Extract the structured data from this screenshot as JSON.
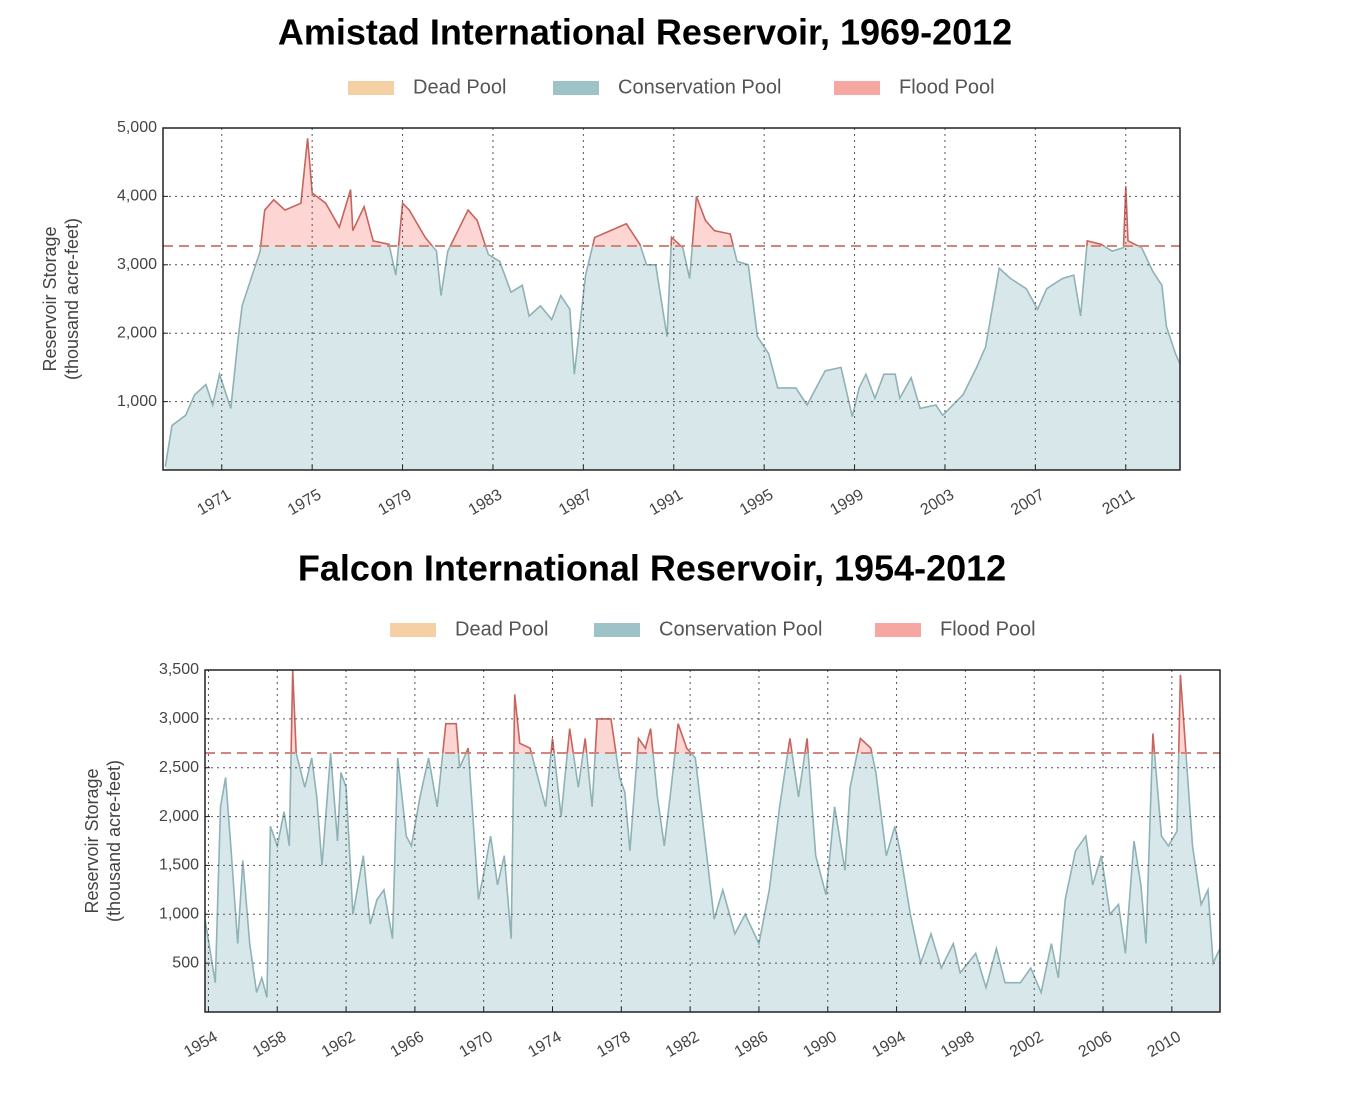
{
  "chart_data": [
    {
      "type": "area",
      "title": "Amistad International Reservoir, 1969-2012",
      "ylabel": [
        "Reservoir Storage",
        "(thousand acre-feet)"
      ],
      "legend": [
        {
          "name": "Dead Pool",
          "color": "#f5d0a4"
        },
        {
          "name": "Conservation Pool",
          "color": "#9ec3c7"
        },
        {
          "name": "Flood Pool",
          "color": "#f7a7a1"
        }
      ],
      "flood_pool_level": 3275,
      "xlim": [
        1968.4,
        2013.4
      ],
      "xticks": [
        1971,
        1975,
        1979,
        1983,
        1987,
        1991,
        1995,
        1999,
        2003,
        2007,
        2011
      ],
      "ylim": [
        0,
        5000
      ],
      "yticks": [
        {
          "value": 1000,
          "label": "1,000"
        },
        {
          "value": 2000,
          "label": "2,000"
        },
        {
          "value": 3000,
          "label": "3,000"
        },
        {
          "value": 4000,
          "label": "4,000"
        },
        {
          "value": 5000,
          "label": "5,000"
        }
      ],
      "grid": true,
      "series": [
        {
          "name": "Reservoir Storage",
          "color": "#8fb2b6",
          "x": [
            1968.5,
            1968.8,
            1969.4,
            1969.8,
            1970.3,
            1970.6,
            1970.9,
            1971.4,
            1971.7,
            1971.9,
            1972.3,
            1972.7,
            1972.9,
            1973.3,
            1973.8,
            1974.5,
            1974.8,
            1975.0,
            1975.6,
            1976.2,
            1976.7,
            1976.8,
            1977.3,
            1977.7,
            1978.4,
            1978.7,
            1979.0,
            1979.3,
            1980.0,
            1980.5,
            1980.7,
            1981.0,
            1981.6,
            1981.9,
            1982.3,
            1982.8,
            1983.3,
            1983.8,
            1984.3,
            1984.6,
            1985.1,
            1985.6,
            1986.0,
            1986.4,
            1986.6,
            1987.1,
            1987.5,
            1988.2,
            1988.9,
            1989.5,
            1989.8,
            1990.2,
            1990.7,
            1990.9,
            1991.4,
            1991.7,
            1992.0,
            1992.4,
            1992.8,
            1993.5,
            1993.8,
            1994.3,
            1994.7,
            1995.2,
            1995.6,
            1996.4,
            1996.9,
            1997.3,
            1997.7,
            1998.4,
            1998.9,
            1999.2,
            1999.5,
            1999.9,
            2000.3,
            2000.8,
            2001.0,
            2001.5,
            2001.9,
            2002.6,
            2002.9,
            2003.5,
            2003.8,
            2004.4,
            2004.8,
            2005.4,
            2005.9,
            2006.6,
            2007.1,
            2007.5,
            2008.2,
            2008.7,
            2009.0,
            2009.3,
            2009.9,
            2010.4,
            2010.9,
            2011.0,
            2011.1,
            2011.7,
            2012.2,
            2012.6,
            2012.8,
            2013.2,
            2013.4
          ],
          "values": [
            50,
            650,
            800,
            1100,
            1250,
            950,
            1400,
            900,
            1850,
            2400,
            2800,
            3200,
            3800,
            3950,
            3800,
            3900,
            4850,
            4050,
            3900,
            3550,
            4100,
            3500,
            3850,
            3350,
            3300,
            2850,
            3900,
            3800,
            3400,
            3200,
            2550,
            3200,
            3600,
            3800,
            3650,
            3150,
            3050,
            2600,
            2700,
            2250,
            2400,
            2200,
            2550,
            2350,
            1400,
            2850,
            3400,
            3500,
            3600,
            3300,
            3000,
            3000,
            1950,
            3400,
            3250,
            2800,
            4000,
            3650,
            3500,
            3450,
            3050,
            3000,
            1950,
            1700,
            1200,
            1200,
            950,
            1200,
            1450,
            1500,
            780,
            1200,
            1400,
            1050,
            1400,
            1400,
            1050,
            1350,
            900,
            950,
            800,
            1000,
            1100,
            1500,
            1800,
            2950,
            2800,
            2650,
            2350,
            2650,
            2800,
            2850,
            2250,
            3350,
            3300,
            3200,
            3250,
            4150,
            3350,
            3250,
            2900,
            2700,
            2100,
            1700,
            1550
          ]
        }
      ]
    },
    {
      "type": "area",
      "title": "Falcon International Reservoir, 1954-2012",
      "ylabel": [
        "Reservoir Storage",
        "(thousand acre-feet)"
      ],
      "legend": [
        {
          "name": "Dead Pool",
          "color": "#f5d0a4"
        },
        {
          "name": "Conservation Pool",
          "color": "#9ec3c7"
        },
        {
          "name": "Flood Pool",
          "color": "#f7a7a1"
        }
      ],
      "flood_pool_level": 2650,
      "xlim": [
        1953.8,
        2012.8
      ],
      "xticks": [
        1954,
        1958,
        1962,
        1966,
        1970,
        1974,
        1978,
        1982,
        1986,
        1990,
        1994,
        1998,
        2002,
        2006,
        2010
      ],
      "ylim": [
        0,
        3500
      ],
      "yticks": [
        500,
        {
          "value": 1000,
          "label": "1,000"
        },
        {
          "value": 1500,
          "label": "1,500"
        },
        {
          "value": 2000,
          "label": "2,000"
        },
        {
          "value": 2500,
          "label": "2,500"
        },
        {
          "value": 3000,
          "label": "3,000"
        },
        {
          "value": 3500,
          "label": "3,500"
        }
      ],
      "grid": true,
      "series": [
        {
          "name": "Reservoir Storage",
          "color": "#8fb2b6",
          "x": [
            1953.8,
            1954.4,
            1954.7,
            1955.0,
            1955.3,
            1955.7,
            1956.0,
            1956.4,
            1956.8,
            1957.1,
            1957.4,
            1957.6,
            1958.0,
            1958.4,
            1958.7,
            1958.9,
            1959.1,
            1959.6,
            1960.0,
            1960.3,
            1960.6,
            1961.1,
            1961.5,
            1961.7,
            1962.0,
            1962.4,
            1963.0,
            1963.4,
            1963.8,
            1964.2,
            1964.7,
            1965.0,
            1965.5,
            1965.8,
            1966.3,
            1966.8,
            1967.3,
            1967.8,
            1968.4,
            1968.6,
            1969.1,
            1969.7,
            1970.1,
            1970.4,
            1970.8,
            1971.2,
            1971.6,
            1971.8,
            1972.1,
            1972.7,
            1973.6,
            1974.0,
            1974.5,
            1975.0,
            1975.5,
            1975.9,
            1976.3,
            1976.6,
            1977.4,
            1977.9,
            1978.2,
            1978.5,
            1979.0,
            1979.4,
            1979.7,
            1980.1,
            1980.5,
            1980.9,
            1981.3,
            1981.8,
            1982.3,
            1982.7,
            1983.4,
            1983.9,
            1984.6,
            1985.2,
            1986.0,
            1986.6,
            1987.2,
            1987.8,
            1988.3,
            1988.8,
            1989.3,
            1989.9,
            1990.4,
            1991.0,
            1991.3,
            1991.9,
            1992.5,
            1992.8,
            1993.4,
            1993.9,
            1994.2,
            1994.8,
            1995.4,
            1996.0,
            1996.6,
            1997.3,
            1997.7,
            1998.6,
            1999.2,
            1999.8,
            2000.3,
            2001.2,
            2001.8,
            2002.4,
            2003.0,
            2003.4,
            2003.8,
            2004.4,
            2005.0,
            2005.4,
            2005.9,
            2006.4,
            2006.9,
            2007.3,
            2007.8,
            2008.2,
            2008.5,
            2008.9,
            2009.4,
            2009.8,
            2010.3,
            2010.5,
            2010.8,
            2011.2,
            2011.7,
            2012.1,
            2012.4,
            2012.8
          ],
          "values": [
            950,
            300,
            2100,
            2400,
            1700,
            700,
            1550,
            700,
            200,
            350,
            150,
            1900,
            1700,
            2050,
            1700,
            3500,
            2650,
            2300,
            2600,
            2200,
            1500,
            2650,
            1750,
            2450,
            2300,
            1000,
            1600,
            900,
            1150,
            1250,
            750,
            2600,
            1800,
            1700,
            2200,
            2600,
            2100,
            2950,
            2950,
            2500,
            2700,
            1150,
            1500,
            1800,
            1300,
            1600,
            750,
            3250,
            2750,
            2700,
            2100,
            2800,
            2000,
            2900,
            2300,
            2800,
            2100,
            3000,
            3000,
            2400,
            2250,
            1650,
            2800,
            2700,
            2900,
            2200,
            1700,
            2300,
            2950,
            2700,
            2600,
            2000,
            950,
            1250,
            800,
            1000,
            700,
            1250,
            2100,
            2800,
            2200,
            2800,
            1600,
            1200,
            2100,
            1450,
            2300,
            2800,
            2700,
            2450,
            1600,
            1900,
            1650,
            1000,
            500,
            800,
            450,
            700,
            400,
            600,
            250,
            650,
            300,
            300,
            450,
            200,
            700,
            350,
            1150,
            1650,
            1800,
            1300,
            1600,
            1000,
            1100,
            600,
            1750,
            1300,
            700,
            2850,
            1800,
            1700,
            1850,
            3450,
            2700,
            1700,
            1100,
            1250,
            500,
            650
          ]
        }
      ]
    }
  ]
}
